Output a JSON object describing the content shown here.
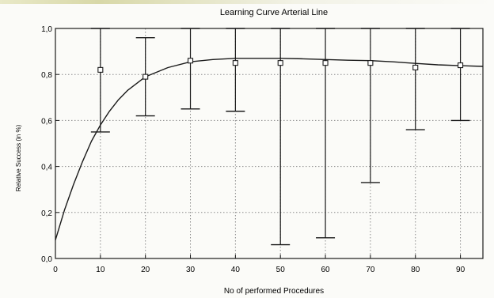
{
  "chart_data": {
    "type": "scatter",
    "title": "Learning Curve Arterial Line",
    "xlabel": "No of performed Procedures",
    "ylabel": "Relative Success (in %)",
    "xlim": [
      0,
      95
    ],
    "ylim": [
      0.0,
      1.0
    ],
    "x_ticks": [
      "0",
      "10",
      "20",
      "30",
      "40",
      "50",
      "60",
      "70",
      "80",
      "90"
    ],
    "y_ticks": [
      "0,0",
      "0,2",
      "0,4",
      "0,6",
      "0,8",
      "1,0"
    ],
    "grid": true,
    "points": [
      {
        "x": 10,
        "y": 0.82,
        "lower": 0.55,
        "upper": 1.0
      },
      {
        "x": 20,
        "y": 0.79,
        "lower": 0.62,
        "upper": 0.96
      },
      {
        "x": 30,
        "y": 0.86,
        "lower": 0.65,
        "upper": 1.0
      },
      {
        "x": 40,
        "y": 0.85,
        "lower": 0.64,
        "upper": 1.0
      },
      {
        "x": 50,
        "y": 0.85,
        "lower": 0.06,
        "upper": 1.0
      },
      {
        "x": 60,
        "y": 0.85,
        "lower": 0.09,
        "upper": 1.0
      },
      {
        "x": 70,
        "y": 0.85,
        "lower": 0.33,
        "upper": 1.0
      },
      {
        "x": 80,
        "y": 0.83,
        "lower": 0.56,
        "upper": 1.0
      },
      {
        "x": 90,
        "y": 0.84,
        "lower": 0.6,
        "upper": 1.0
      }
    ],
    "fit_curve": {
      "x": [
        0,
        2,
        4,
        6,
        8,
        10,
        12,
        14,
        16,
        18,
        20,
        25,
        30,
        35,
        40,
        45,
        50,
        55,
        60,
        65,
        70,
        75,
        80,
        85,
        90,
        95
      ],
      "y": [
        0.08,
        0.21,
        0.32,
        0.42,
        0.51,
        0.58,
        0.64,
        0.69,
        0.73,
        0.76,
        0.79,
        0.83,
        0.855,
        0.865,
        0.87,
        0.87,
        0.87,
        0.868,
        0.865,
        0.862,
        0.86,
        0.855,
        0.848,
        0.842,
        0.838,
        0.835
      ]
    },
    "colors": {
      "line": "#1a1a1a",
      "grid": "#8a8a8a",
      "background": "#fbfbf8"
    }
  }
}
